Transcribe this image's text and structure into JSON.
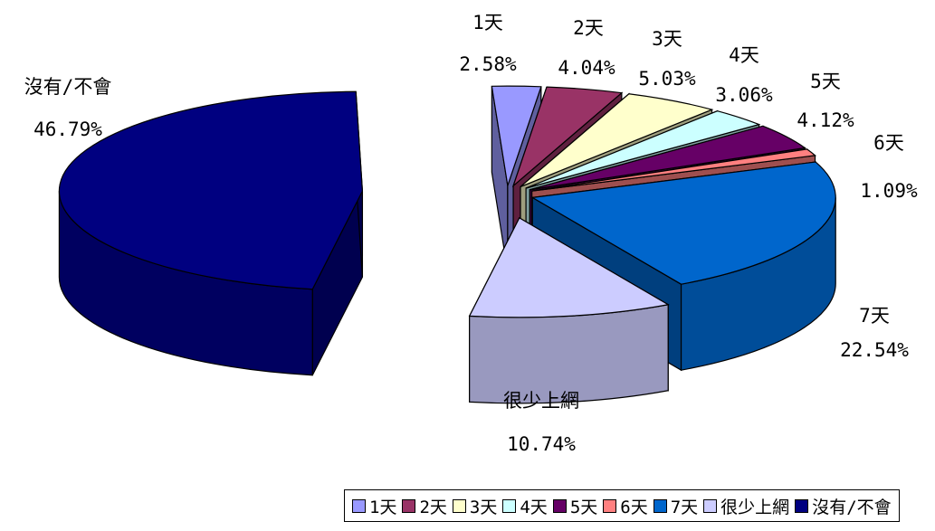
{
  "chart_data": {
    "type": "pie",
    "exploded_3d": true,
    "categories": [
      "1天",
      "2天",
      "3天",
      "4天",
      "5天",
      "6天",
      "7天",
      "很少上網",
      "沒有/不會"
    ],
    "values_percent": [
      2.58,
      4.04,
      5.03,
      3.06,
      4.12,
      1.09,
      22.54,
      10.74,
      46.79
    ],
    "value_labels": [
      "2.58%",
      "4.04%",
      "5.03%",
      "3.06%",
      "4.12%",
      "1.09%",
      "22.54%",
      "10.74%",
      "46.79%"
    ],
    "colors": [
      "#9999ff",
      "#993366",
      "#ffffcc",
      "#ccffff",
      "#660066",
      "#ff8080",
      "#0066cc",
      "#ccccff",
      "#000080"
    ],
    "legend_position": "bottom"
  }
}
